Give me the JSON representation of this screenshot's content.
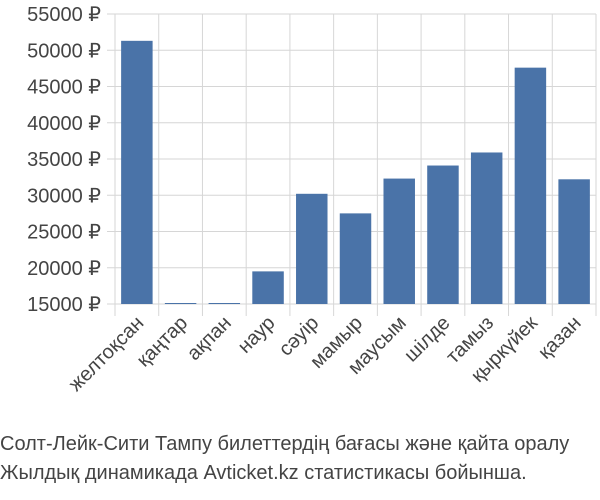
{
  "chart_data": {
    "type": "bar",
    "categories": [
      "желтоқсан",
      "қаңтар",
      "ақпан",
      "наур",
      "сәуір",
      "мамыр",
      "маусым",
      "шілде",
      "тамыз",
      "қыркүйек",
      "қазан"
    ],
    "values": [
      51300,
      15050,
      15050,
      19500,
      30200,
      27500,
      32300,
      34100,
      35900,
      47600,
      32200
    ],
    "ylim": [
      15000,
      55000
    ],
    "yticks": [
      15000,
      20000,
      25000,
      30000,
      35000,
      40000,
      45000,
      50000,
      55000
    ],
    "y_tick_suffix": " ₽",
    "bar_color": "#4a73a8",
    "grid": true
  },
  "caption": {
    "line1": "Солт-Лейк-Сити Тампу билеттердің бағасы және қайта оралу",
    "line2": "Жылдық динамикада Avticket.kz статистикасы бойынша."
  }
}
